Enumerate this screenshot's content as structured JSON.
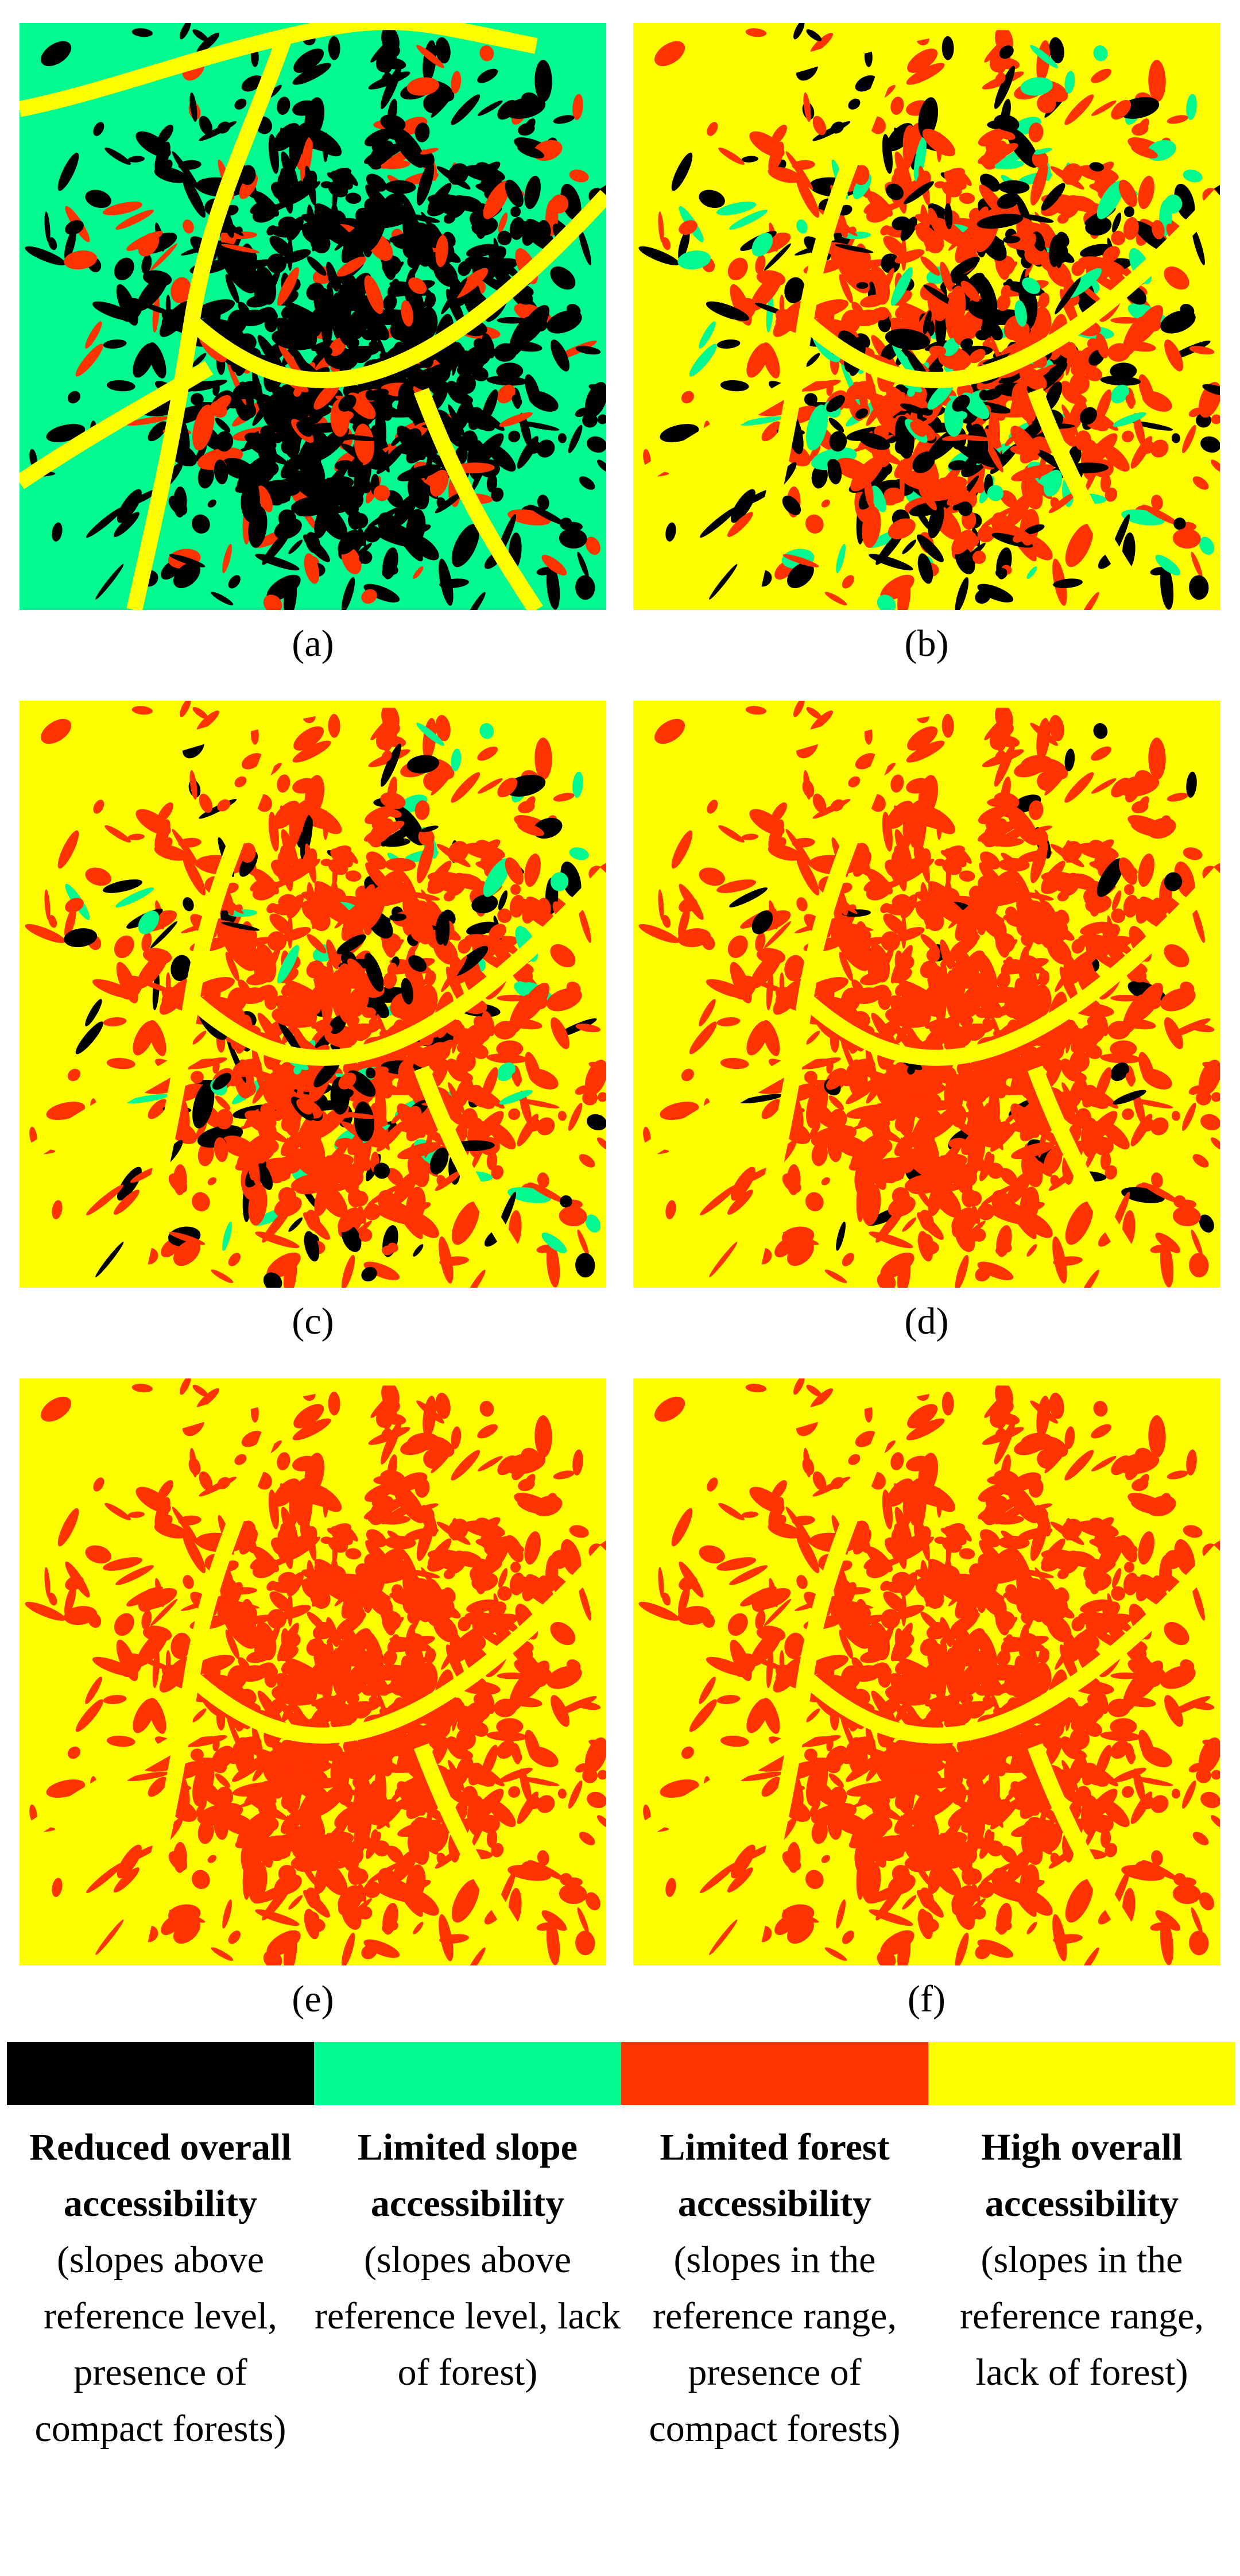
{
  "panels": [
    {
      "label": "(a)"
    },
    {
      "label": "(b)"
    },
    {
      "label": "(c)"
    },
    {
      "label": "(d)"
    },
    {
      "label": "(e)"
    },
    {
      "label": "(f)"
    }
  ],
  "legend": [
    {
      "color": "#000000",
      "title": "Reduced overall accessibility",
      "description": "(slopes above reference level, presence of compact forests)"
    },
    {
      "color": "#00fa8f",
      "title": "Limited slope accessibility",
      "description": "(slopes above reference level, lack of forest)"
    },
    {
      "color": "#ff3300",
      "title": "Limited forest accessibility",
      "description": "(slopes in the reference range, presence of compact forests)"
    },
    {
      "color": "#ffff00",
      "title": "High overall accessibility",
      "description": "(slopes in the reference range, lack of forest)"
    }
  ]
}
